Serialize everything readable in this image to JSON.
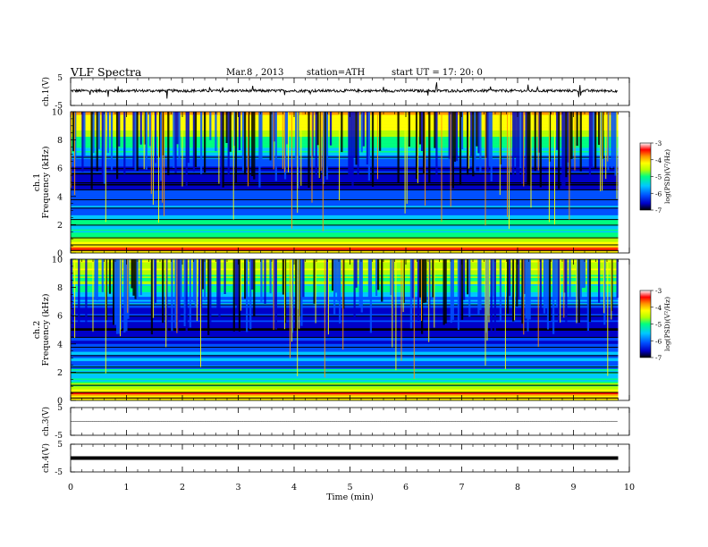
{
  "header": {
    "title": "VLF  Spectra",
    "date": "Mar.8  , 2013",
    "station": "station=ATH",
    "start": "start  UT  =    17: 20: 0"
  },
  "chart_data": [
    {
      "type": "line",
      "name": "ch1-waveform",
      "ylabel": "ch.1(V)",
      "ylim": [
        -5,
        5
      ],
      "yticks": [
        "5",
        "-5"
      ],
      "baseline": 0.3,
      "noise_amplitude": 0.5
    },
    {
      "type": "heatmap",
      "name": "ch1-spectrogram",
      "ylabel": "ch.1\nFrequency  (kHz)",
      "xlim": [
        0,
        10
      ],
      "ylim": [
        0,
        10
      ],
      "yticks": [
        "0",
        "2",
        "4",
        "6",
        "8",
        "10"
      ],
      "data_end_min": 9.8,
      "colorbar": {
        "label": "log(PSD)(V²/Hz)",
        "range": [
          -7,
          -3
        ],
        "ticks": [
          "-3",
          "-4",
          "-5",
          "-6",
          "-7"
        ]
      },
      "colormap": [
        "#000000",
        "#0000c8",
        "#0050ff",
        "#00c8ff",
        "#00ff80",
        "#b4ff00",
        "#ffff00",
        "#ff9600",
        "#ff0000",
        "#ffffff"
      ],
      "band_profile": [
        {
          "f": 0.0,
          "v": -4.4
        },
        {
          "f": 0.3,
          "v": -3.6
        },
        {
          "f": 0.8,
          "v": -4.9
        },
        {
          "f": 1.5,
          "v": -5.4
        },
        {
          "f": 2.2,
          "v": -5.5
        },
        {
          "f": 3.0,
          "v": -5.9
        },
        {
          "f": 4.0,
          "v": -6.2
        },
        {
          "f": 5.0,
          "v": -6.5
        },
        {
          "f": 6.0,
          "v": -6.3
        },
        {
          "f": 7.0,
          "v": -5.7
        },
        {
          "f": 8.5,
          "v": -4.8
        },
        {
          "f": 10.0,
          "v": -4.2
        }
      ]
    },
    {
      "type": "heatmap",
      "name": "ch2-spectrogram",
      "ylabel": "ch.2\nFrequency  (kHz)",
      "xlim": [
        0,
        10
      ],
      "ylim": [
        0,
        10
      ],
      "yticks": [
        "0",
        "2",
        "4",
        "6",
        "8",
        "10"
      ],
      "data_end_min": 9.8,
      "colorbar": {
        "label": "log(PSD)(V²/Hz)",
        "range": [
          -7,
          -3
        ],
        "ticks": [
          "-3",
          "-4",
          "-5",
          "-6",
          "-7"
        ]
      },
      "colormap": [
        "#000000",
        "#0000c8",
        "#0050ff",
        "#00c8ff",
        "#00ff80",
        "#b4ff00",
        "#ffff00",
        "#ff9600",
        "#ff0000",
        "#ffffff"
      ],
      "band_profile": [
        {
          "f": 0.0,
          "v": -4.3
        },
        {
          "f": 0.5,
          "v": -3.9
        },
        {
          "f": 1.0,
          "v": -5.0
        },
        {
          "f": 1.8,
          "v": -5.6
        },
        {
          "f": 3.0,
          "v": -5.7
        },
        {
          "f": 4.0,
          "v": -6.1
        },
        {
          "f": 5.0,
          "v": -6.5
        },
        {
          "f": 6.0,
          "v": -6.4
        },
        {
          "f": 7.0,
          "v": -5.9
        },
        {
          "f": 8.5,
          "v": -5.0
        },
        {
          "f": 10.0,
          "v": -4.6
        }
      ]
    },
    {
      "type": "line",
      "name": "ch3-waveform",
      "ylabel": "ch.3(V)",
      "ylim": [
        -5,
        5
      ],
      "yticks": [
        "5",
        "-5"
      ],
      "baseline": 0.0,
      "noise_amplitude": 0.05
    },
    {
      "type": "line",
      "name": "ch4-waveform",
      "ylabel": "ch.4(V)",
      "ylim": [
        -5,
        5
      ],
      "yticks": [
        "5",
        "-5"
      ],
      "baseline": 0.0,
      "noise_amplitude": 0.3
    }
  ],
  "x_axis": {
    "label": "Time  (min)",
    "range": [
      0,
      10
    ],
    "ticks": [
      "0",
      "1",
      "2",
      "3",
      "4",
      "5",
      "6",
      "7",
      "8",
      "9",
      "10"
    ]
  }
}
